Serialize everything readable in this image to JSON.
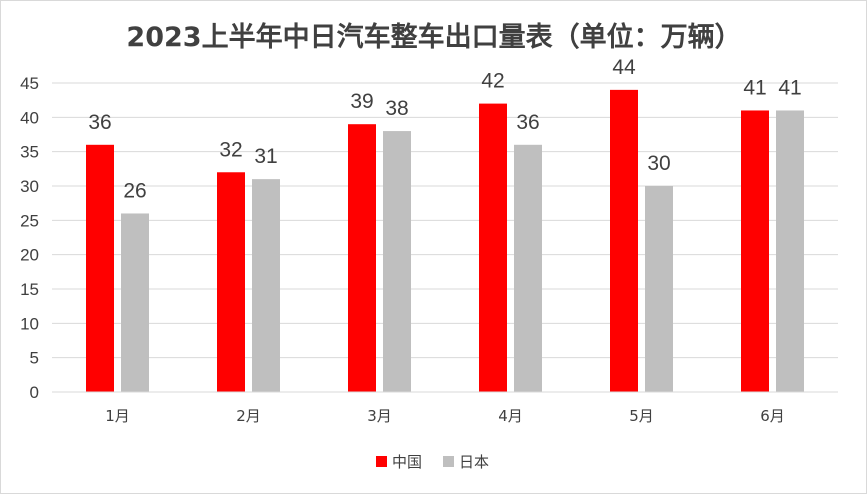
{
  "chart_data": {
    "type": "bar",
    "title": "2023上半年中日汽车整车出口量表（单位：万辆）",
    "categories": [
      "1月",
      "2月",
      "3月",
      "4月",
      "5月",
      "6月"
    ],
    "series": [
      {
        "name": "中国",
        "color": "#ff0000",
        "values": [
          36,
          32,
          39,
          42,
          44,
          41
        ]
      },
      {
        "name": "日本",
        "color": "#bfbfbf",
        "values": [
          26,
          31,
          38,
          36,
          30,
          41
        ]
      }
    ],
    "yticks": [
      "0",
      "5",
      "10",
      "15",
      "20",
      "25",
      "30",
      "35",
      "40",
      "45"
    ],
    "ylim": [
      0,
      45
    ],
    "grid": true,
    "data_labels": true,
    "legend_position": "bottom"
  }
}
